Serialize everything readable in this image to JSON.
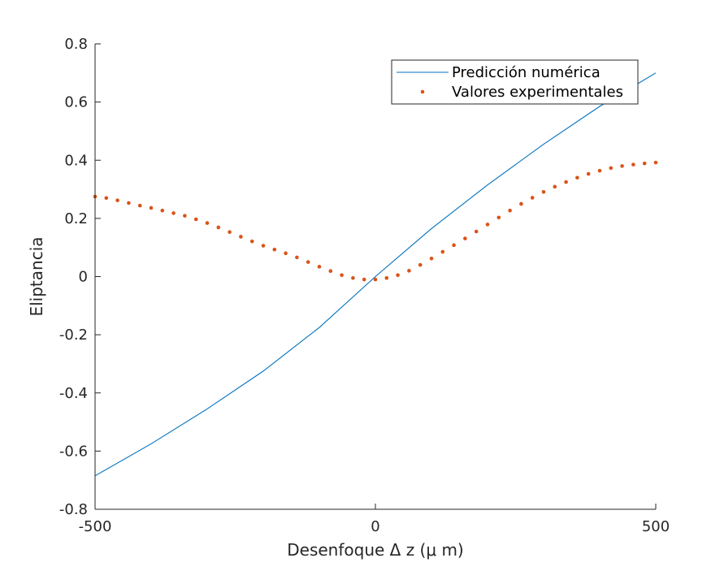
{
  "chart_data": {
    "type": "line",
    "xlabel": "Desenfoque Δ z (μ m)",
    "ylabel": "Eliptancia",
    "xlim": [
      -500,
      500
    ],
    "ylim": [
      -0.8,
      0.8
    ],
    "xticks": [
      "-500",
      "0",
      "500"
    ],
    "yticks": [
      "-0.8",
      "-0.6",
      "-0.4",
      "-0.2",
      "0",
      "0.2",
      "0.4",
      "0.6",
      "0.8"
    ],
    "grid": false,
    "legend_position": "top-right",
    "series": [
      {
        "name": "Predicción numérica",
        "style": "line",
        "color": "#0072BD",
        "x": [
          -500,
          -400,
          -300,
          -200,
          -100,
          0,
          100,
          200,
          300,
          400,
          500
        ],
        "y": [
          -0.685,
          -0.575,
          -0.455,
          -0.325,
          -0.175,
          0.0,
          0.165,
          0.315,
          0.455,
          0.585,
          0.7
        ]
      },
      {
        "name": "Valores experimentales",
        "style": "dots",
        "color": "#D95319",
        "x": [
          -500,
          -480,
          -460,
          -440,
          -420,
          -400,
          -380,
          -360,
          -340,
          -320,
          -300,
          -280,
          -260,
          -240,
          -220,
          -200,
          -180,
          -160,
          -140,
          -120,
          -100,
          -80,
          -60,
          -40,
          -20,
          0,
          20,
          40,
          60,
          80,
          100,
          120,
          140,
          160,
          180,
          200,
          220,
          240,
          260,
          280,
          300,
          320,
          340,
          360,
          380,
          400,
          420,
          440,
          460,
          480,
          500
        ],
        "y": [
          0.275,
          0.27,
          0.262,
          0.253,
          0.244,
          0.236,
          0.227,
          0.218,
          0.209,
          0.197,
          0.184,
          0.169,
          0.153,
          0.137,
          0.121,
          0.106,
          0.093,
          0.08,
          0.066,
          0.05,
          0.034,
          0.019,
          0.005,
          -0.005,
          -0.01,
          -0.01,
          -0.005,
          0.005,
          0.02,
          0.04,
          0.062,
          0.085,
          0.108,
          0.131,
          0.155,
          0.179,
          0.203,
          0.227,
          0.25,
          0.271,
          0.291,
          0.309,
          0.325,
          0.34,
          0.353,
          0.364,
          0.373,
          0.38,
          0.385,
          0.389,
          0.392
        ]
      }
    ]
  }
}
